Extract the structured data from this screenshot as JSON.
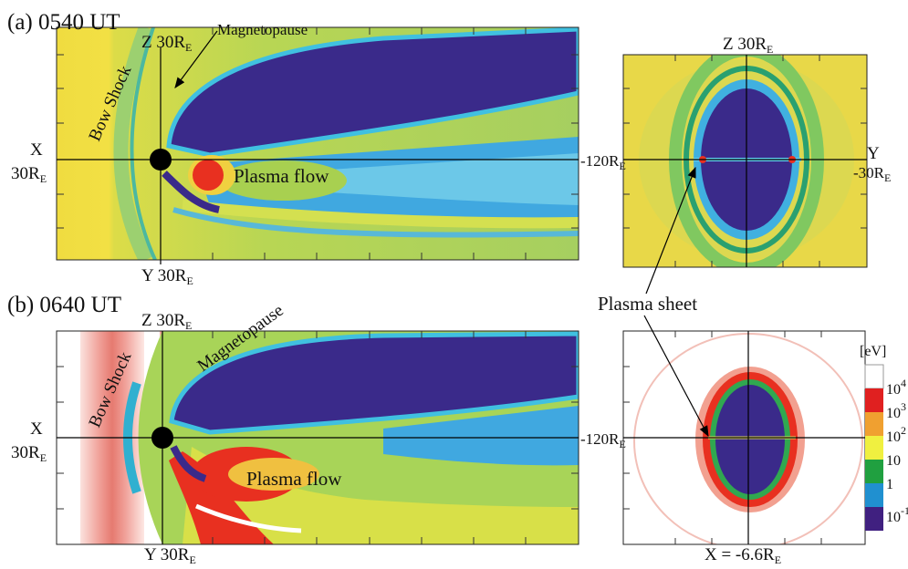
{
  "panel_a": {
    "label": "(a) 0540 UT",
    "top_axis": {
      "text": "Z 30R",
      "sub": "E"
    },
    "annotation_magnetopause": "Magnetopause",
    "annotation_bow_shock": "Bow Shock",
    "x_axis": {
      "letter": "X",
      "text": "30R",
      "sub": "E"
    },
    "annotation_flow": "Plasma flow",
    "right_end": {
      "text": "-120R",
      "sub": "E"
    },
    "bottom_axis": {
      "text": "Y 30R",
      "sub": "E"
    },
    "cross_section": {
      "top_axis": {
        "text": "Z 30R",
        "sub": "E"
      },
      "right_letter": "Y",
      "right_end": {
        "text": "-30R",
        "sub": "E"
      }
    }
  },
  "panel_b": {
    "label": "(b) 0640 UT",
    "top_axis": {
      "text": "Z 30R",
      "sub": "E"
    },
    "annotation_magnetopause": "Magnetopause",
    "annotation_bow_shock": "Bow Shock",
    "x_axis": {
      "letter": "X",
      "text": "30R",
      "sub": "E"
    },
    "annotation_flow": "Plasma flow",
    "right_end": {
      "text": "-120R",
      "sub": "E"
    },
    "bottom_axis": {
      "text": "Y 30R",
      "sub": "E"
    },
    "cross_section": {
      "bottom_axis": {
        "text": "X = -6.6R",
        "sub": "E"
      }
    }
  },
  "annotation_plasma_sheet": "Plasma sheet",
  "colorbar": {
    "unit": "[eV]",
    "labels": [
      {
        "base": "10",
        "exp": "4"
      },
      {
        "base": "10",
        "exp": "3"
      },
      {
        "base": "10",
        "exp": "2"
      },
      {
        "base": "10"
      },
      {
        "base": "1"
      },
      {
        "base": "10",
        "exp": "-1"
      }
    ]
  }
}
